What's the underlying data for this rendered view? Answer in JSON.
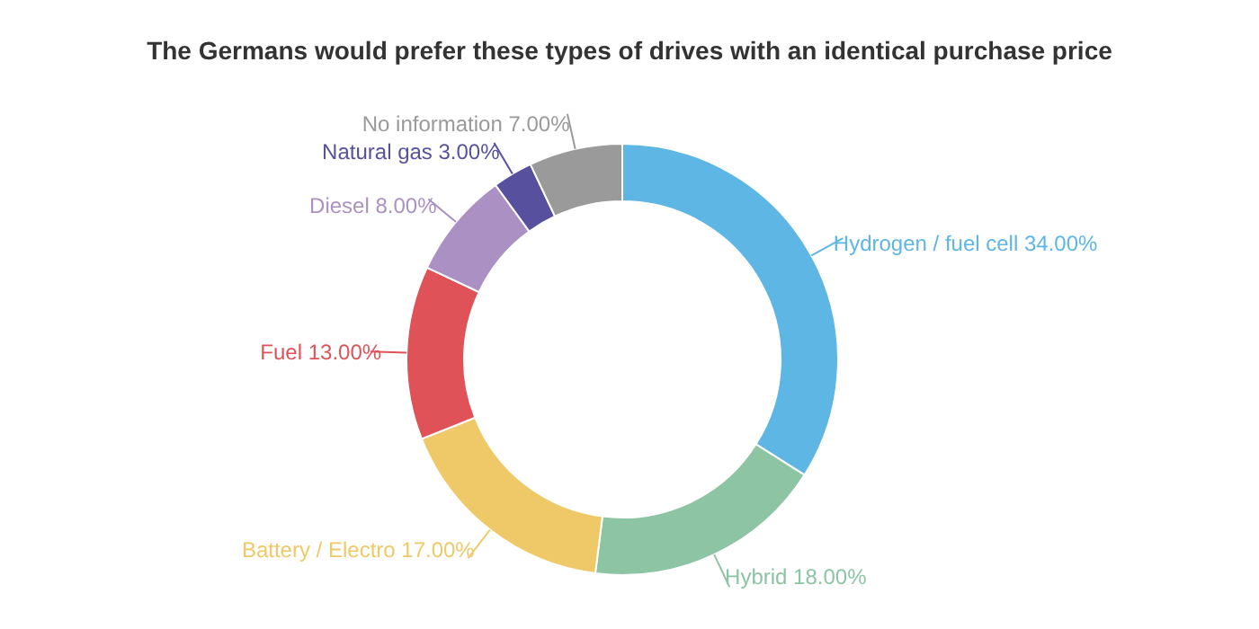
{
  "chart_data": {
    "type": "donut",
    "title": "The Germans would prefer these types of drives with an identical purchase price",
    "categories": [
      "Hydrogen / fuel cell",
      "Hybrid",
      "Battery / Electro",
      "Fuel",
      "Diesel",
      "Natural gas",
      "No information"
    ],
    "values": [
      34,
      18,
      17,
      13,
      8,
      3,
      7
    ],
    "value_labels": [
      "34.00%",
      "18.00%",
      "17.00%",
      "13.00%",
      "8.00%",
      "3.00%",
      "7.00%"
    ],
    "colors": [
      "#5db6e4",
      "#8cc4a4",
      "#efc968",
      "#df5358",
      "#ab90c4",
      "#57509f",
      "#9a9a9a"
    ],
    "legend": false
  }
}
